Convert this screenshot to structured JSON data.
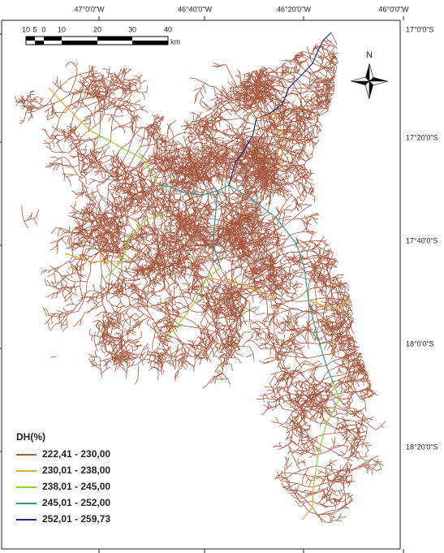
{
  "top_labels": [
    "47°0'0\"W",
    "46°40'0\"W",
    "46°20'0\"W",
    "46°0'0\"W"
  ],
  "side_labels": [
    "17°0'0\"S",
    "17°20'0\"S",
    "17°40'0\"S",
    "18°0'0\"S",
    "18°20'0\"S"
  ],
  "scale_bar": {
    "labels": [
      "10",
      "5",
      "0",
      "10",
      "20",
      "30",
      "40"
    ],
    "unit": "km"
  },
  "north": "N",
  "legend": {
    "title": "DH(%)",
    "items": [
      {
        "label": "222,41 - 230,00",
        "color": "#a8573f"
      },
      {
        "label": "230,01 - 238,00",
        "color": "#e5a92c"
      },
      {
        "label": "238,01 - 245,00",
        "color": "#86d42c"
      },
      {
        "label": "245,01 - 252,00",
        "color": "#2d9a8c"
      },
      {
        "label": "252,01 - 259,73",
        "color": "#1c2a8c"
      }
    ]
  }
}
